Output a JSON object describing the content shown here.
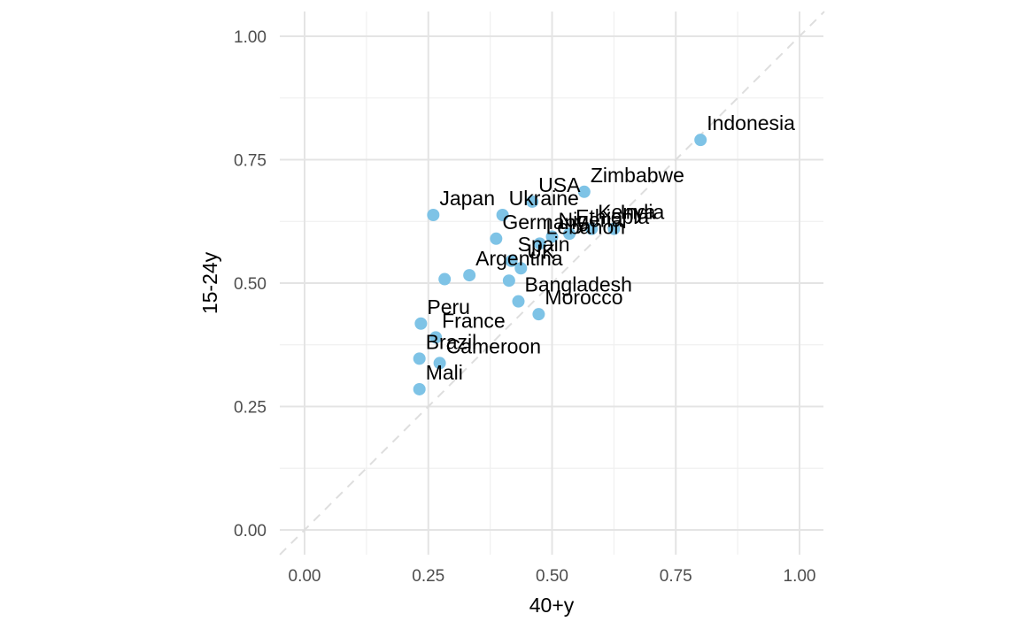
{
  "chart_data": {
    "type": "scatter",
    "xlabel": "40+y",
    "ylabel": "15-24y",
    "xlim": [
      -0.05,
      1.05
    ],
    "ylim": [
      -0.05,
      1.05
    ],
    "x_ticks": [
      "0.00",
      "0.25",
      "0.50",
      "0.75",
      "1.00"
    ],
    "y_ticks": [
      "0.00",
      "0.25",
      "0.50",
      "0.75",
      "1.00"
    ],
    "x_tick_values": [
      0,
      0.25,
      0.5,
      0.75,
      1.0
    ],
    "y_tick_values": [
      0,
      0.25,
      0.5,
      0.75,
      1.0
    ],
    "grid": true,
    "reference_line": "y = x (dashed)",
    "point_color": "#7ec3e6",
    "points": [
      {
        "label": "Indonesia",
        "x": 0.8,
        "y": 0.79
      },
      {
        "label": "Zimbabwe",
        "x": 0.565,
        "y": 0.685
      },
      {
        "label": "USA",
        "x": 0.46,
        "y": 0.665
      },
      {
        "label": "Japan",
        "x": 0.26,
        "y": 0.638
      },
      {
        "label": "Ukraine",
        "x": 0.4,
        "y": 0.638
      },
      {
        "label": "India",
        "x": 0.625,
        "y": 0.61
      },
      {
        "label": "Kenya",
        "x": 0.58,
        "y": 0.61
      },
      {
        "label": "Ethiopia",
        "x": 0.535,
        "y": 0.6
      },
      {
        "label": "Nigeria",
        "x": 0.5,
        "y": 0.594
      },
      {
        "label": "Germany",
        "x": 0.387,
        "y": 0.59
      },
      {
        "label": "Lebanon",
        "x": 0.475,
        "y": 0.58
      },
      {
        "label": "Spain",
        "x": 0.418,
        "y": 0.545
      },
      {
        "label": "UK",
        "x": 0.437,
        "y": 0.53
      },
      {
        "label": "Argentina",
        "x": 0.333,
        "y": 0.516
      },
      {
        "label": "",
        "x": 0.283,
        "y": 0.508
      },
      {
        "label": "",
        "x": 0.413,
        "y": 0.505
      },
      {
        "label": "Bangladesh",
        "x": 0.432,
        "y": 0.463
      },
      {
        "label": "Morocco",
        "x": 0.473,
        "y": 0.437
      },
      {
        "label": "Peru",
        "x": 0.235,
        "y": 0.418
      },
      {
        "label": "France",
        "x": 0.265,
        "y": 0.39
      },
      {
        "label": "Brazil",
        "x": 0.232,
        "y": 0.347
      },
      {
        "label": "Cameroon",
        "x": 0.273,
        "y": 0.338
      },
      {
        "label": "Mali",
        "x": 0.232,
        "y": 0.285
      }
    ]
  }
}
